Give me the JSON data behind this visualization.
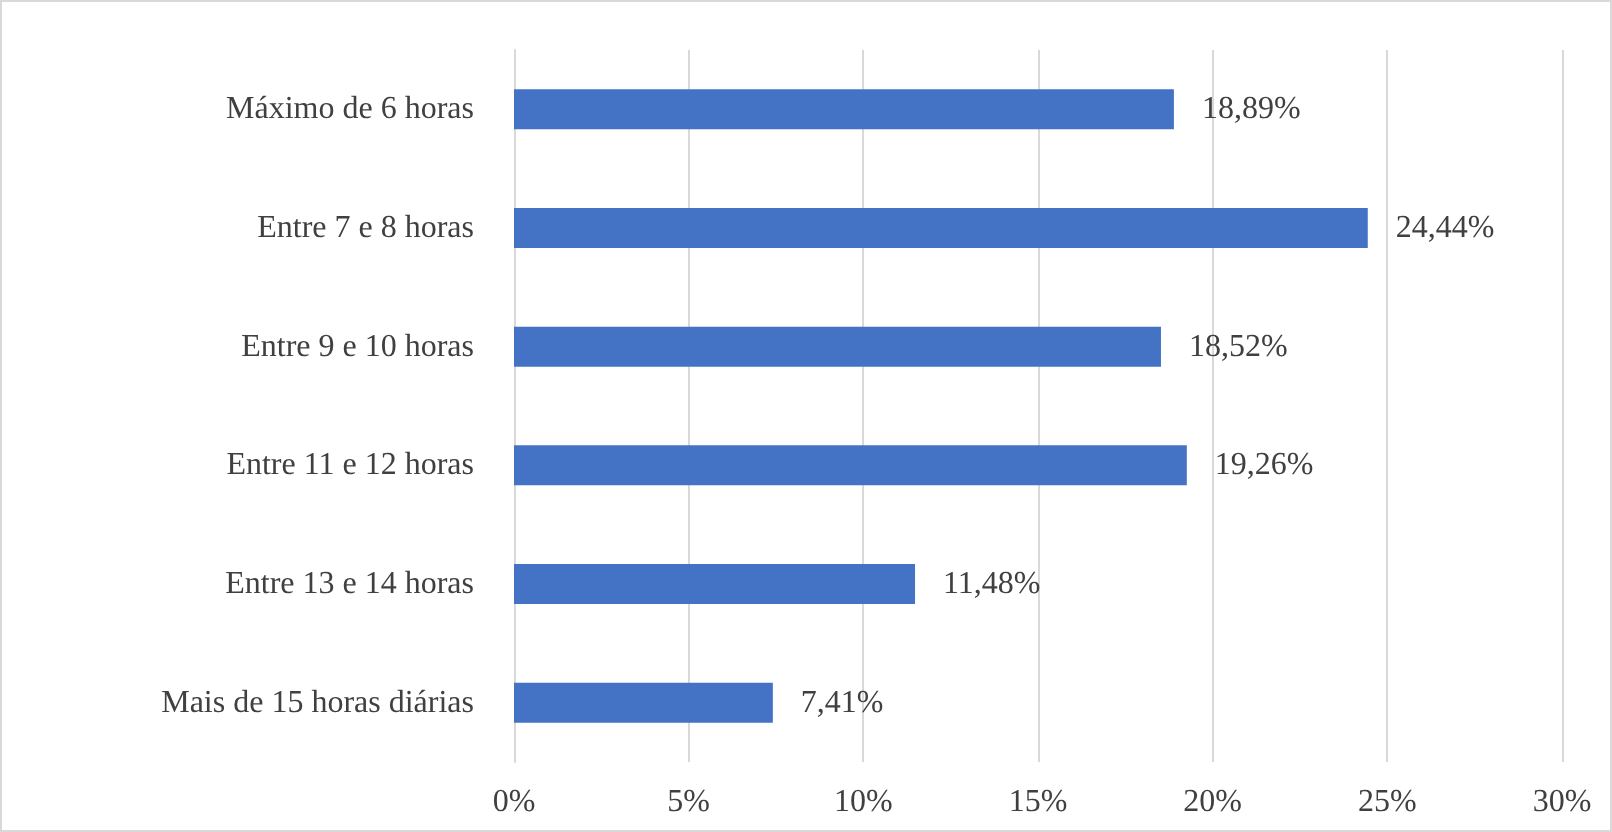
{
  "chart_data": {
    "type": "bar",
    "orientation": "horizontal",
    "categories": [
      "Máximo de 6 horas",
      "Entre 7 e 8 horas",
      "Entre 9 e 10 horas",
      "Entre 11 e 12 horas",
      "Entre 13 e 14 horas",
      "Mais de 15 horas diárias"
    ],
    "values": [
      18.89,
      24.44,
      18.52,
      19.26,
      11.48,
      7.41
    ],
    "value_labels": [
      "18,89%",
      "24,44%",
      "18,52%",
      "19,26%",
      "11,48%",
      "7,41%"
    ],
    "color": "#4472c4",
    "xlim": [
      0,
      30
    ],
    "xticks": [
      {
        "value": 0,
        "label": "0%"
      },
      {
        "value": 5,
        "label": "5%"
      },
      {
        "value": 10,
        "label": "10%"
      },
      {
        "value": 15,
        "label": "15%"
      },
      {
        "value": 20,
        "label": "20%"
      },
      {
        "value": 25,
        "label": "25%"
      },
      {
        "value": 30,
        "label": "30%"
      }
    ],
    "grid": "x"
  }
}
